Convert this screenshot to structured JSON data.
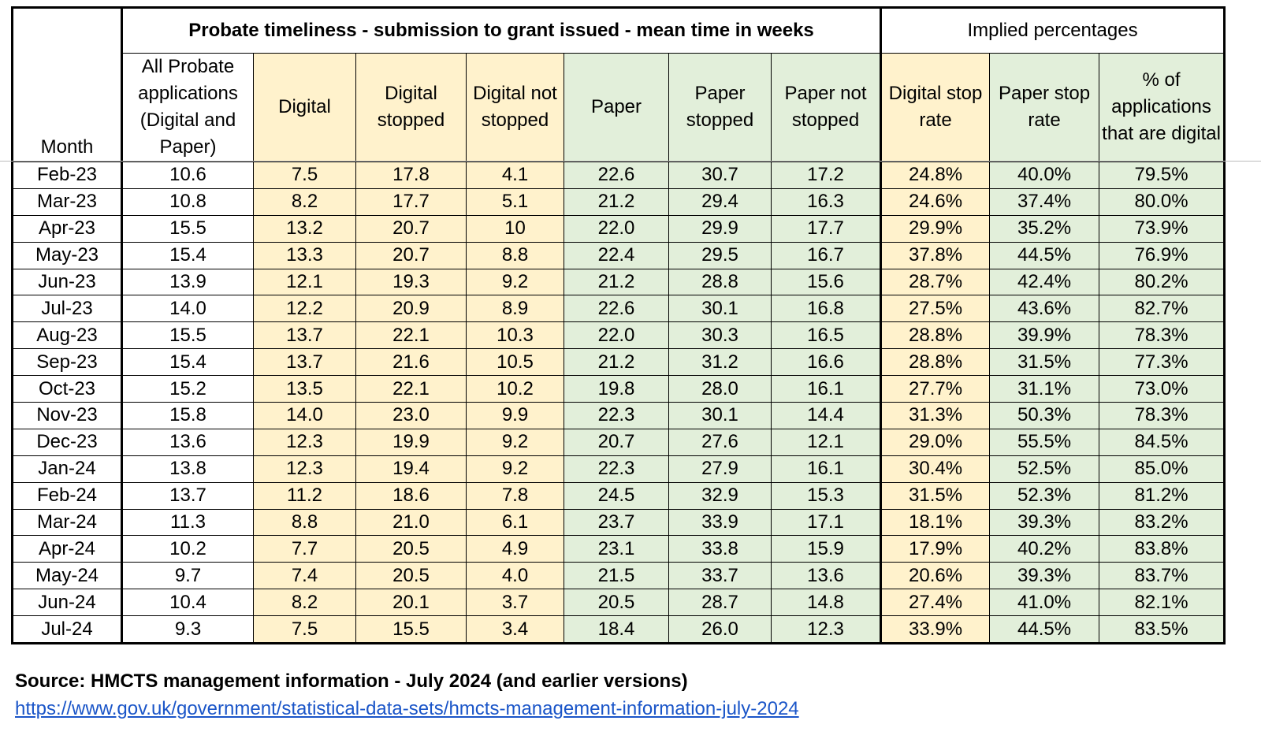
{
  "header": {
    "month": "Month",
    "group_timeliness": "Probate timeliness - submission to grant issued - mean time in weeks",
    "group_implied": "Implied percentages",
    "columns": [
      "All Probate applications (Digital and Paper)",
      "Digital",
      "Digital stopped",
      "Digital not stopped",
      "Paper",
      "Paper stopped",
      "Paper not stopped",
      "Digital stop rate",
      "Paper stop rate",
      "% of applications that are digital"
    ]
  },
  "rows": [
    [
      "Feb-23",
      "10.6",
      "7.5",
      "17.8",
      "4.1",
      "22.6",
      "30.7",
      "17.2",
      "24.8%",
      "40.0%",
      "79.5%"
    ],
    [
      "Mar-23",
      "10.8",
      "8.2",
      "17.7",
      "5.1",
      "21.2",
      "29.4",
      "16.3",
      "24.6%",
      "37.4%",
      "80.0%"
    ],
    [
      "Apr-23",
      "15.5",
      "13.2",
      "20.7",
      "10",
      "22.0",
      "29.9",
      "17.7",
      "29.9%",
      "35.2%",
      "73.9%"
    ],
    [
      "May-23",
      "15.4",
      "13.3",
      "20.7",
      "8.8",
      "22.4",
      "29.5",
      "16.7",
      "37.8%",
      "44.5%",
      "76.9%"
    ],
    [
      "Jun-23",
      "13.9",
      "12.1",
      "19.3",
      "9.2",
      "21.2",
      "28.8",
      "15.6",
      "28.7%",
      "42.4%",
      "80.2%"
    ],
    [
      "Jul-23",
      "14.0",
      "12.2",
      "20.9",
      "8.9",
      "22.6",
      "30.1",
      "16.8",
      "27.5%",
      "43.6%",
      "82.7%"
    ],
    [
      "Aug-23",
      "15.5",
      "13.7",
      "22.1",
      "10.3",
      "22.0",
      "30.3",
      "16.5",
      "28.8%",
      "39.9%",
      "78.3%"
    ],
    [
      "Sep-23",
      "15.4",
      "13.7",
      "21.6",
      "10.5",
      "21.2",
      "31.2",
      "16.6",
      "28.8%",
      "31.5%",
      "77.3%"
    ],
    [
      "Oct-23",
      "15.2",
      "13.5",
      "22.1",
      "10.2",
      "19.8",
      "28.0",
      "16.1",
      "27.7%",
      "31.1%",
      "73.0%"
    ],
    [
      "Nov-23",
      "15.8",
      "14.0",
      "23.0",
      "9.9",
      "22.3",
      "30.1",
      "14.4",
      "31.3%",
      "50.3%",
      "78.3%"
    ],
    [
      "Dec-23",
      "13.6",
      "12.3",
      "19.9",
      "9.2",
      "20.7",
      "27.6",
      "12.1",
      "29.0%",
      "55.5%",
      "84.5%"
    ],
    [
      "Jan-24",
      "13.8",
      "12.3",
      "19.4",
      "9.2",
      "22.3",
      "27.9",
      "16.1",
      "30.4%",
      "52.5%",
      "85.0%"
    ],
    [
      "Feb-24",
      "13.7",
      "11.2",
      "18.6",
      "7.8",
      "24.5",
      "32.9",
      "15.3",
      "31.5%",
      "52.3%",
      "81.2%"
    ],
    [
      "Mar-24",
      "11.3",
      "8.8",
      "21.0",
      "6.1",
      "23.7",
      "33.9",
      "17.1",
      "18.1%",
      "39.3%",
      "83.2%"
    ],
    [
      "Apr-24",
      "10.2",
      "7.7",
      "20.5",
      "4.9",
      "23.1",
      "33.8",
      "15.9",
      "17.9%",
      "40.2%",
      "83.8%"
    ],
    [
      "May-24",
      "9.7",
      "7.4",
      "20.5",
      "4.0",
      "21.5",
      "33.7",
      "13.6",
      "20.6%",
      "39.3%",
      "83.7%"
    ],
    [
      "Jun-24",
      "10.4",
      "8.2",
      "20.1",
      "3.7",
      "20.5",
      "28.7",
      "14.8",
      "27.4%",
      "41.0%",
      "82.1%"
    ],
    [
      "Jul-24",
      "9.3",
      "7.5",
      "15.5",
      "3.4",
      "18.4",
      "26.0",
      "12.3",
      "33.9%",
      "44.5%",
      "83.5%"
    ]
  ],
  "source": {
    "text": "Source: HMCTS management information - July 2024 (and earlier versions)",
    "link": "https://www.gov.uk/government/statistical-data-sets/hmcts-management-information-july-2024"
  }
}
